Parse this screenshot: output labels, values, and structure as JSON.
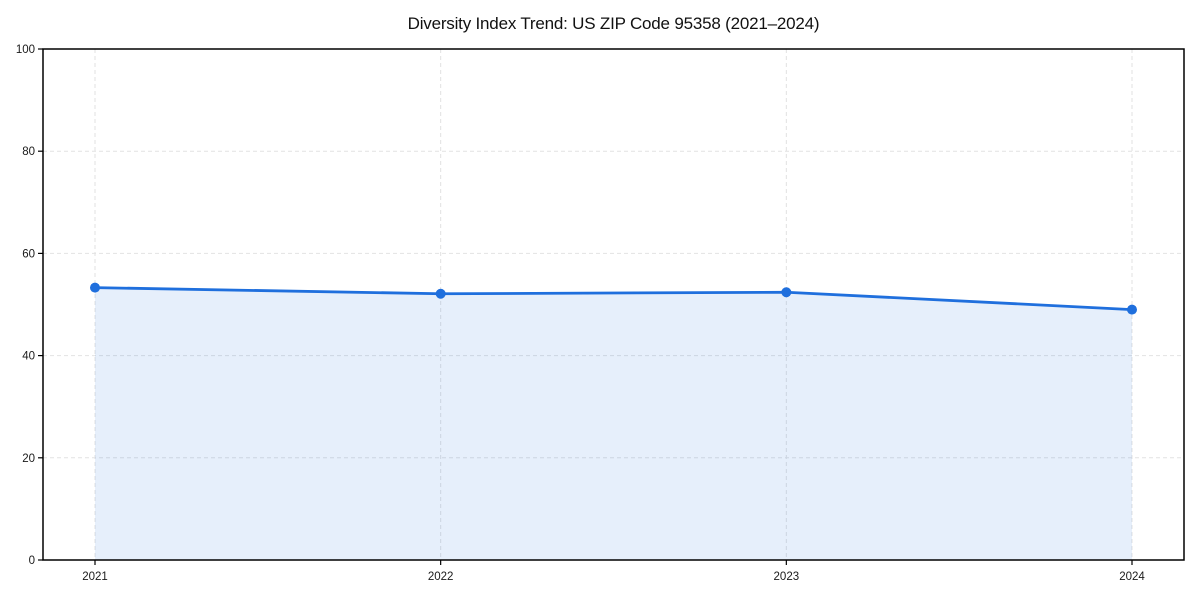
{
  "page": {
    "background": "#ffffff"
  },
  "chart_data": {
    "type": "line",
    "title": "Diversity Index Trend: US ZIP Code 95358 (2021–2024)",
    "x": [
      "2021",
      "2022",
      "2023",
      "2024"
    ],
    "series": [
      {
        "name": "Diversity Index",
        "values": [
          53.3,
          52.1,
          52.4,
          49.0
        ]
      }
    ],
    "xlabel": "",
    "ylabel": "",
    "ylim": [
      0,
      100
    ],
    "yticks": [
      0,
      20,
      40,
      60,
      80,
      100
    ],
    "grid": "dashed",
    "legend": "none",
    "area_fill": true,
    "markers": true,
    "colors": {
      "line": "#1f6fdd",
      "area_fill_opacity": 0.11,
      "grid": "#e2e2e2",
      "axis": "#000000",
      "text": "#1a1a1a"
    }
  }
}
